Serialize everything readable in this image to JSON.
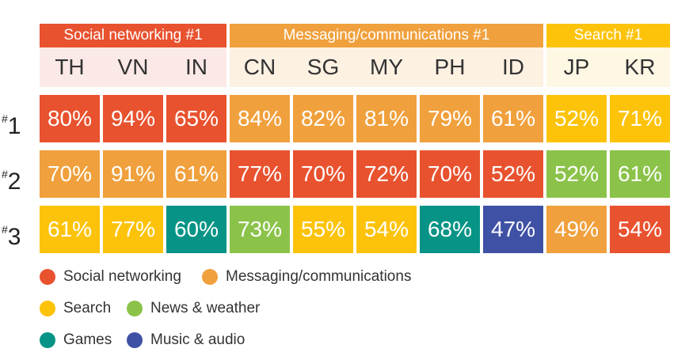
{
  "chart_data": {
    "type": "table",
    "groups": [
      {
        "label": "Social networking #1",
        "color": "#e8522f",
        "band": "#fbe9e7",
        "columns": 3
      },
      {
        "label": "Messaging/communications #1",
        "color": "#f0a03c",
        "band": "#fdf1e2",
        "columns": 5
      },
      {
        "label": "Search #1",
        "color": "#fdc30a",
        "band": "#fef7e4",
        "columns": 2
      }
    ],
    "countries": [
      "TH",
      "VN",
      "IN",
      "CN",
      "SG",
      "MY",
      "PH",
      "ID",
      "JP",
      "KR"
    ],
    "ranks": [
      {
        "mark": "#",
        "number": "1"
      },
      {
        "mark": "#",
        "number": "2"
      },
      {
        "mark": "#",
        "number": "3"
      }
    ],
    "rows": [
      {
        "values": [
          "80%",
          "94%",
          "65%",
          "84%",
          "82%",
          "81%",
          "79%",
          "61%",
          "52%",
          "71%"
        ],
        "categories": [
          "social",
          "social",
          "social",
          "messaging",
          "messaging",
          "messaging",
          "messaging",
          "messaging",
          "search",
          "search"
        ]
      },
      {
        "values": [
          "70%",
          "91%",
          "61%",
          "77%",
          "70%",
          "72%",
          "70%",
          "52%",
          "52%",
          "61%"
        ],
        "categories": [
          "messaging",
          "messaging",
          "messaging",
          "social",
          "social",
          "social",
          "social",
          "social",
          "news",
          "news"
        ]
      },
      {
        "values": [
          "61%",
          "77%",
          "60%",
          "73%",
          "55%",
          "54%",
          "68%",
          "47%",
          "49%",
          "54%"
        ],
        "categories": [
          "search",
          "search",
          "games",
          "news",
          "search",
          "search",
          "games",
          "music",
          "messaging",
          "social"
        ]
      }
    ],
    "legend": [
      {
        "key": "social",
        "label": "Social networking",
        "color": "#e8522f"
      },
      {
        "key": "messaging",
        "label": "Messaging/communications",
        "color": "#f0a03c"
      },
      {
        "key": "search",
        "label": "Search",
        "color": "#fdc30a"
      },
      {
        "key": "news",
        "label": "News & weather",
        "color": "#8bc34a"
      },
      {
        "key": "games",
        "label": "Games",
        "color": "#079486"
      },
      {
        "key": "music",
        "label": "Music & audio",
        "color": "#3f51a5"
      }
    ]
  }
}
